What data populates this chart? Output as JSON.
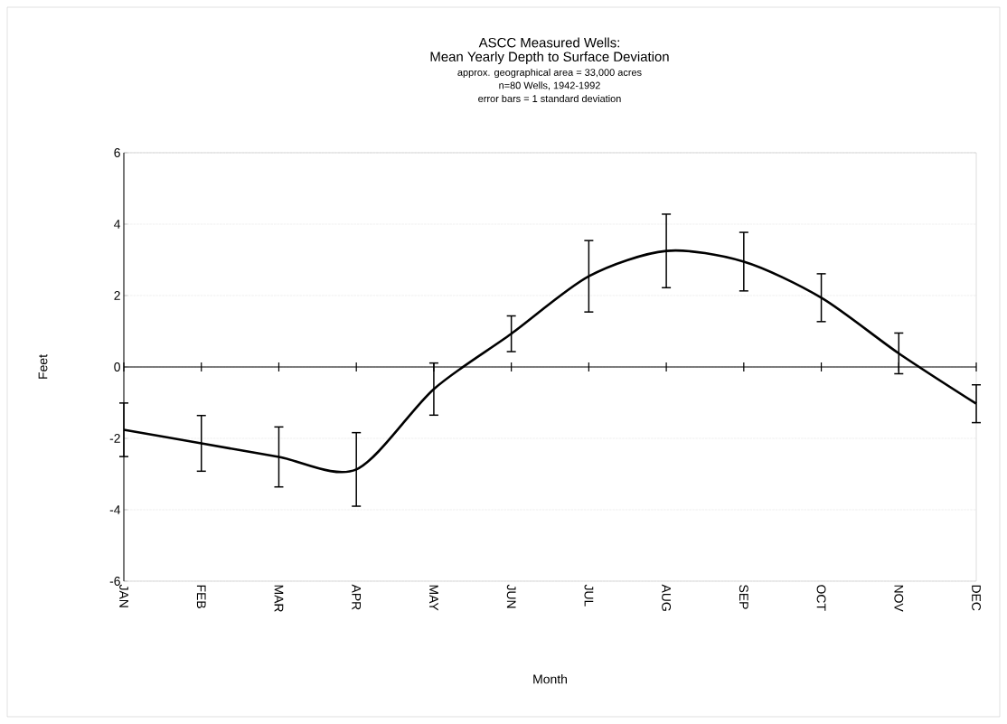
{
  "chart_data": {
    "type": "line",
    "title": "ASCC Measured Wells:",
    "subtitle": "Mean Yearly Depth to Surface Deviation",
    "annotations": [
      "approx. geographical area = 33,000 acres",
      "n=80 Wells, 1942-1992",
      "error bars = 1 standard deviation"
    ],
    "xlabel": "Month",
    "ylabel": "Feet",
    "categories": [
      "JAN",
      "FEB",
      "MAR",
      "APR",
      "MAY",
      "JUN",
      "JUL",
      "AUG",
      "SEP",
      "OCT",
      "NOV",
      "DEC"
    ],
    "series": [
      {
        "color": "#000000",
        "values": [
          -1.76,
          -2.14,
          -2.52,
          -2.87,
          -0.62,
          0.93,
          2.54,
          3.25,
          2.95,
          1.94,
          0.38,
          -1.03
        ],
        "errors": [
          0.75,
          0.78,
          0.84,
          1.03,
          0.73,
          0.5,
          1.0,
          1.03,
          0.82,
          0.67,
          0.57,
          0.53
        ]
      }
    ],
    "ylim": [
      -6,
      6
    ],
    "yticks": [
      -6,
      -4,
      -2,
      0,
      2,
      4,
      6
    ],
    "grid": "y",
    "marker": "none",
    "line_style": "solid",
    "ref_lines": [
      {
        "axis": "y",
        "value": 0,
        "color": "#000000"
      }
    ]
  }
}
